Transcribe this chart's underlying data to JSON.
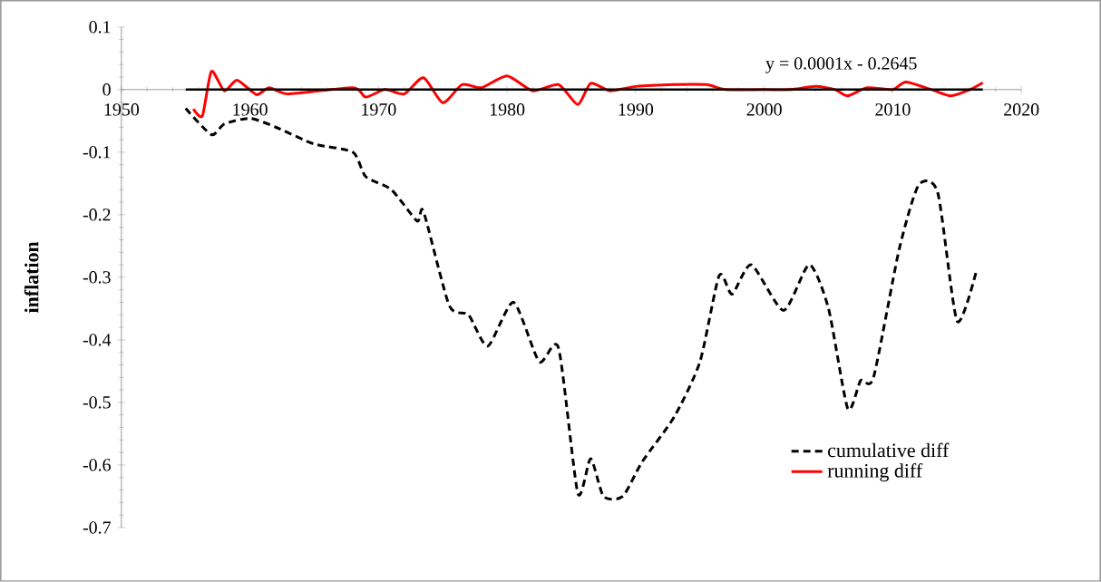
{
  "chart_data": {
    "type": "line",
    "ylabel": "inflation",
    "annotations": [
      "y = 0.0001x - 0.2645"
    ],
    "xlim": [
      1950,
      2020
    ],
    "xticks": [
      1950,
      1960,
      1970,
      1980,
      1990,
      2000,
      2010,
      2020
    ],
    "ylim": [
      -0.7,
      0.1
    ],
    "yticks": [
      -0.7,
      -0.6,
      -0.5,
      -0.4,
      -0.3,
      -0.2,
      -0.1,
      0,
      0.1
    ],
    "legend": "bottom right",
    "marker": "none",
    "series": [
      {
        "name": "cumulative diff",
        "color": "#000000",
        "line_style": "dashed",
        "x": [
          1955,
          1957,
          1958,
          1960,
          1962,
          1965,
          1968,
          1969,
          1971,
          1973,
          1973.5,
          1975.5,
          1977,
          1978.5,
          1980.5,
          1982.5,
          1984,
          1985.5,
          1986.5,
          1987.5,
          1989,
          1990.5,
          1993,
          1995,
          1996.5,
          1997.5,
          1999,
          2001.5,
          2003.5,
          2005,
          2006.5,
          2007.5,
          2008.5,
          2010.5,
          2012,
          2013.5,
          2015,
          2016.5
        ],
        "values": [
          -0.03,
          -0.072,
          -0.055,
          -0.046,
          -0.06,
          -0.087,
          -0.1,
          -0.139,
          -0.16,
          -0.21,
          -0.195,
          -0.345,
          -0.36,
          -0.41,
          -0.34,
          -0.435,
          -0.413,
          -0.645,
          -0.59,
          -0.65,
          -0.65,
          -0.595,
          -0.523,
          -0.435,
          -0.297,
          -0.327,
          -0.28,
          -0.353,
          -0.28,
          -0.35,
          -0.51,
          -0.465,
          -0.46,
          -0.255,
          -0.153,
          -0.165,
          -0.37,
          -0.29
        ]
      },
      {
        "name": "running diff",
        "color": "#ff0000",
        "line_style": "solid",
        "x": [
          1955.6,
          1956.3,
          1957,
          1958,
          1959,
          1960.5,
          1961.5,
          1963,
          1968,
          1969,
          1970.5,
          1972,
          1973.5,
          1975,
          1976.5,
          1978,
          1980,
          1982,
          1984,
          1985.5,
          1986.5,
          1988,
          1990,
          1993,
          1995.5,
          1997,
          2000,
          2002,
          2004,
          2005.5,
          2006.5,
          2008,
          2010,
          2011,
          2013,
          2014.5,
          2016,
          2017
        ],
        "values": [
          -0.031,
          -0.042,
          0.029,
          -0.002,
          0.015,
          -0.008,
          0.003,
          -0.007,
          0.003,
          -0.012,
          0,
          -0.007,
          0.019,
          -0.021,
          0.008,
          0.003,
          0.022,
          -0.002,
          0.008,
          -0.024,
          0.01,
          -0.002,
          0.005,
          0.008,
          0.008,
          0,
          0,
          0,
          0.005,
          0,
          -0.01,
          0.003,
          0,
          0.012,
          0,
          -0.01,
          0,
          0.011
        ]
      },
      {
        "color": "#000000",
        "line_style": "solid",
        "x": [
          1955,
          2017
        ],
        "values": [
          0,
          0
        ]
      }
    ]
  }
}
